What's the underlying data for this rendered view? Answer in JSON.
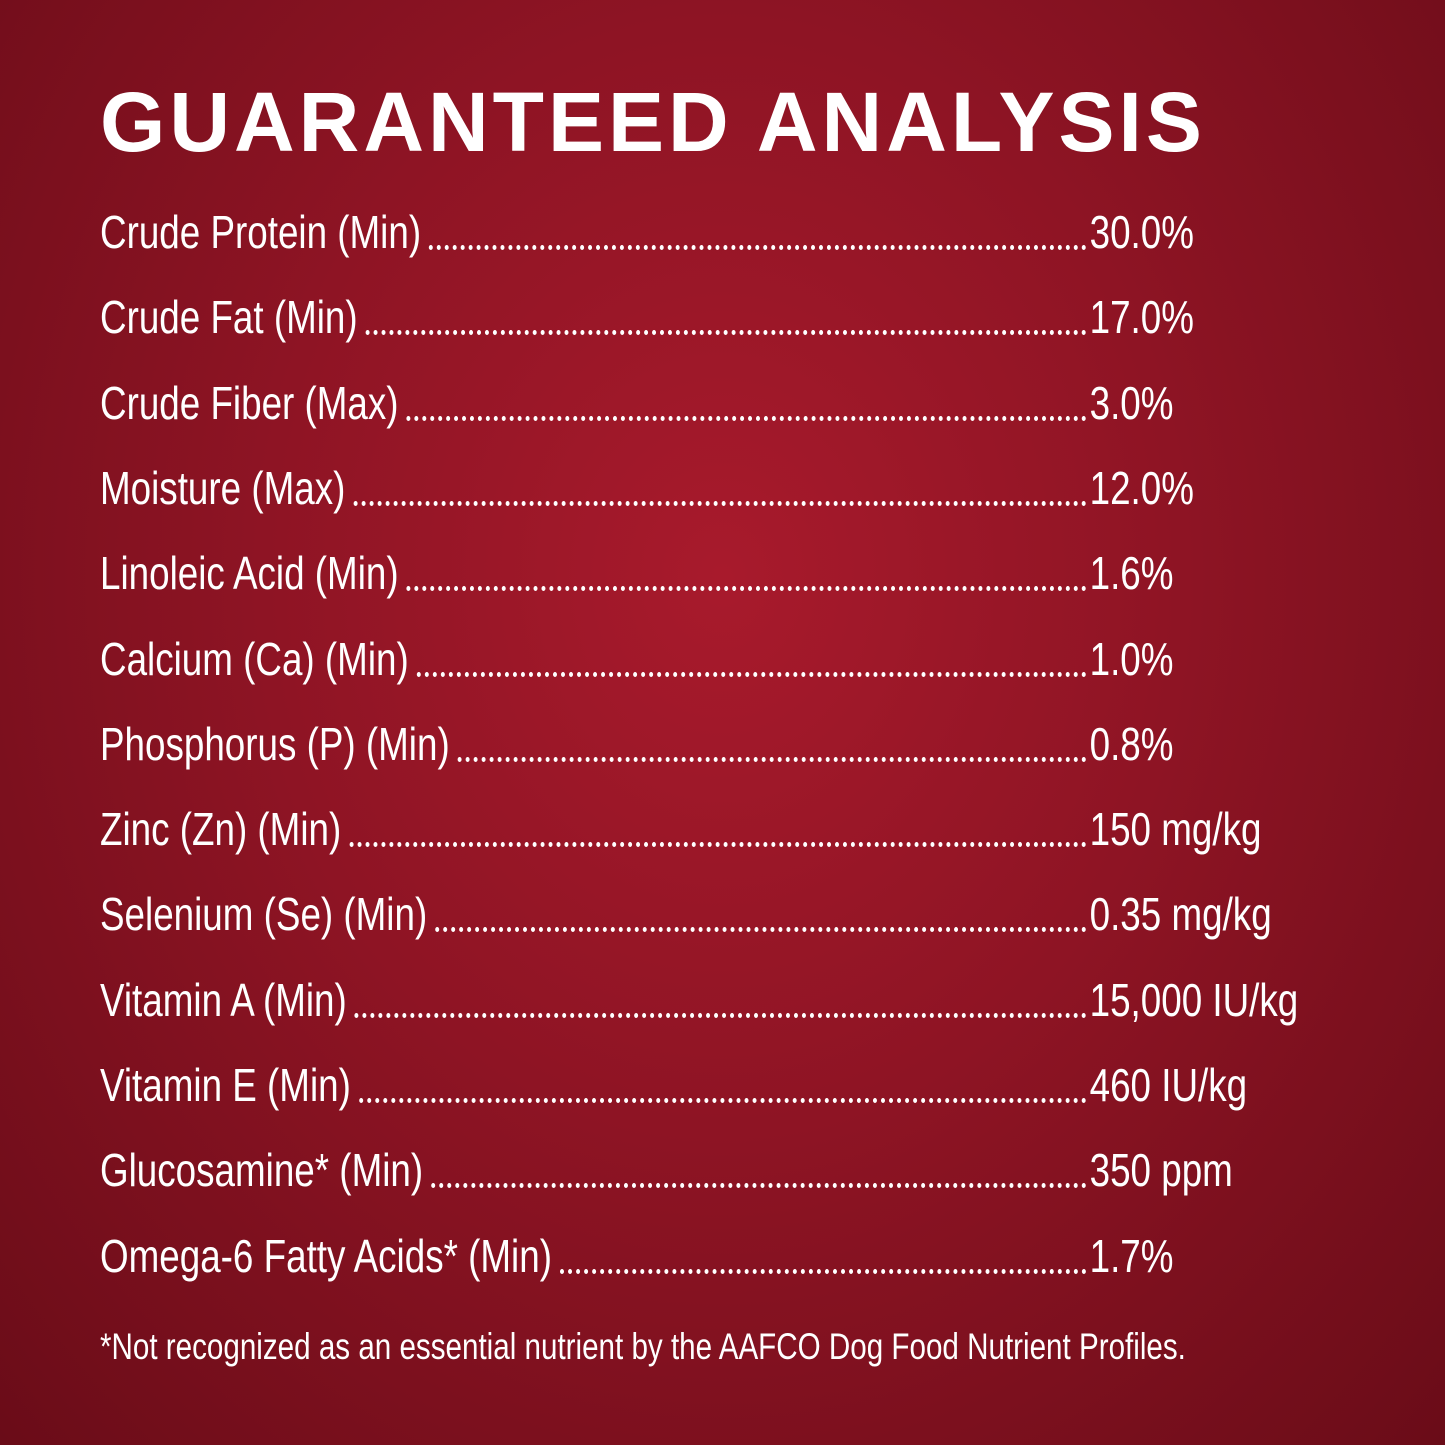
{
  "title": "GUARANTEED ANALYSIS",
  "rows": [
    {
      "nutrient": "Crude Protein (Min)",
      "value": "30.0%"
    },
    {
      "nutrient": "Crude Fat (Min)",
      "value": "17.0%"
    },
    {
      "nutrient": "Crude Fiber (Max)",
      "value": "3.0%"
    },
    {
      "nutrient": "Moisture (Max)",
      "value": "12.0%"
    },
    {
      "nutrient": "Linoleic Acid (Min)",
      "value": "1.6%"
    },
    {
      "nutrient": "Calcium (Ca) (Min)",
      "value": "1.0%"
    },
    {
      "nutrient": "Phosphorus (P) (Min)",
      "value": "0.8%"
    },
    {
      "nutrient": "Zinc (Zn) (Min)",
      "value": "150 mg/kg"
    },
    {
      "nutrient": "Selenium (Se) (Min)",
      "value": "0.35 mg/kg"
    },
    {
      "nutrient": "Vitamin A (Min)",
      "value": "15,000 IU/kg"
    },
    {
      "nutrient": "Vitamin E (Min)",
      "value": "460 IU/kg"
    },
    {
      "nutrient": "Glucosamine* (Min)",
      "value": "350 ppm"
    },
    {
      "nutrient": "Omega-6 Fatty Acids* (Min)",
      "value": "1.7%"
    }
  ],
  "footnote": "*Not recognized as an essential nutrient by the AAFCO Dog Food Nutrient Profiles."
}
